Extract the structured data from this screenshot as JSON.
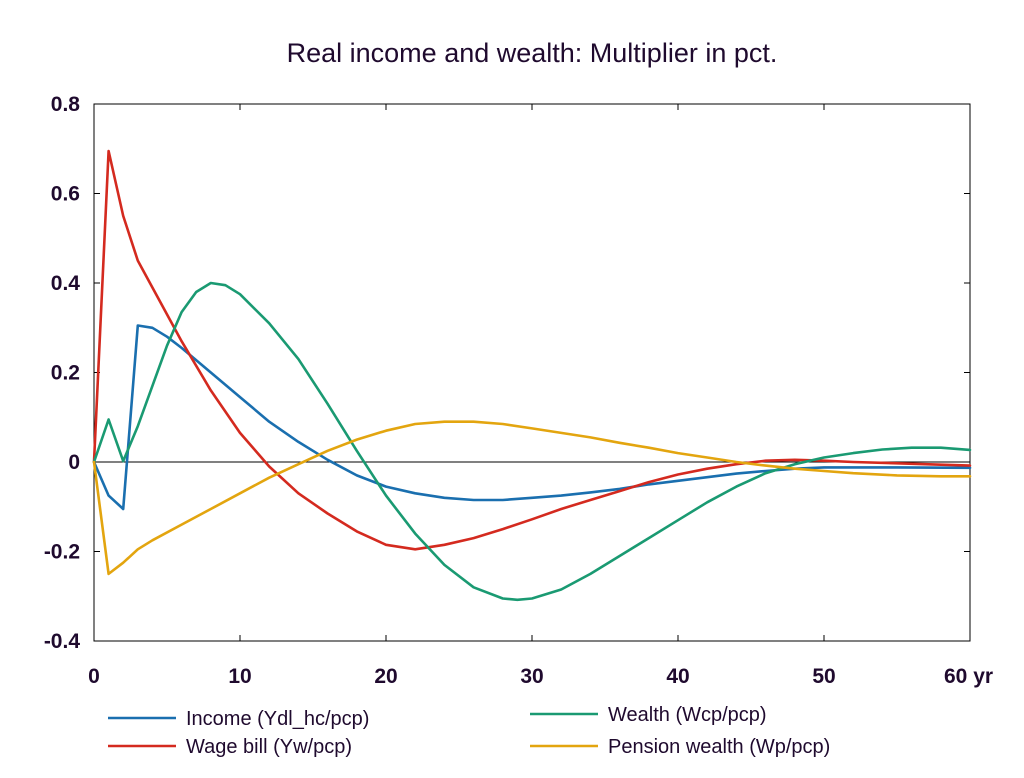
{
  "chart_data": {
    "type": "line",
    "title": "Real income and wealth: Multiplier in pct.",
    "xlabel": "",
    "ylabel": "",
    "xlim": [
      0,
      60
    ],
    "ylim": [
      -0.4,
      0.8
    ],
    "x_ticks": [
      0,
      10,
      20,
      30,
      40,
      50,
      60
    ],
    "x_tick_labels": [
      "0",
      "10",
      "20",
      "30",
      "40",
      "50",
      "60 yr"
    ],
    "y_ticks": [
      -0.4,
      -0.2,
      0,
      0.2,
      0.4,
      0.6,
      0.8
    ],
    "y_tick_labels": [
      "-0.4",
      "-0.2",
      "0",
      "0.2",
      "0.4",
      "0.6",
      "0.8"
    ],
    "zero_line": true,
    "grid": false,
    "legend_position": "bottom",
    "series": [
      {
        "name": "Income (Ydl_hc/pcp)",
        "color": "#1a6faf",
        "points": [
          [
            0,
            0
          ],
          [
            1,
            -0.075
          ],
          [
            2,
            -0.105
          ],
          [
            3,
            0.305
          ],
          [
            4,
            0.3
          ],
          [
            5,
            0.28
          ],
          [
            6,
            0.255
          ],
          [
            8,
            0.2
          ],
          [
            10,
            0.145
          ],
          [
            12,
            0.09
          ],
          [
            14,
            0.045
          ],
          [
            16,
            0.005
          ],
          [
            18,
            -0.03
          ],
          [
            20,
            -0.055
          ],
          [
            22,
            -0.07
          ],
          [
            24,
            -0.08
          ],
          [
            26,
            -0.085
          ],
          [
            28,
            -0.085
          ],
          [
            30,
            -0.08
          ],
          [
            32,
            -0.075
          ],
          [
            34,
            -0.068
          ],
          [
            36,
            -0.06
          ],
          [
            38,
            -0.05
          ],
          [
            40,
            -0.042
          ],
          [
            42,
            -0.034
          ],
          [
            44,
            -0.026
          ],
          [
            46,
            -0.02
          ],
          [
            48,
            -0.015
          ],
          [
            50,
            -0.012
          ],
          [
            55,
            -0.012
          ],
          [
            60,
            -0.013
          ]
        ]
      },
      {
        "name": "Wage bill (Yw/pcp)",
        "color": "#d42a1f",
        "points": [
          [
            0,
            0
          ],
          [
            1,
            0.695
          ],
          [
            2,
            0.55
          ],
          [
            3,
            0.45
          ],
          [
            4,
            0.39
          ],
          [
            6,
            0.27
          ],
          [
            8,
            0.16
          ],
          [
            10,
            0.065
          ],
          [
            12,
            -0.01
          ],
          [
            14,
            -0.07
          ],
          [
            16,
            -0.115
          ],
          [
            18,
            -0.155
          ],
          [
            20,
            -0.185
          ],
          [
            22,
            -0.195
          ],
          [
            24,
            -0.185
          ],
          [
            26,
            -0.17
          ],
          [
            28,
            -0.15
          ],
          [
            30,
            -0.128
          ],
          [
            32,
            -0.105
          ],
          [
            34,
            -0.085
          ],
          [
            36,
            -0.065
          ],
          [
            38,
            -0.045
          ],
          [
            40,
            -0.028
          ],
          [
            42,
            -0.015
          ],
          [
            44,
            -0.005
          ],
          [
            46,
            0.003
          ],
          [
            48,
            0.005
          ],
          [
            50,
            0.003
          ],
          [
            52,
            0
          ],
          [
            55,
            -0.003
          ],
          [
            58,
            -0.006
          ],
          [
            60,
            -0.008
          ]
        ]
      },
      {
        "name": "Wealth (Wcp/pcp)",
        "color": "#1a9a72",
        "points": [
          [
            0,
            0
          ],
          [
            1,
            0.095
          ],
          [
            2,
            0.002
          ],
          [
            3,
            0.08
          ],
          [
            4,
            0.17
          ],
          [
            5,
            0.26
          ],
          [
            6,
            0.335
          ],
          [
            7,
            0.38
          ],
          [
            8,
            0.4
          ],
          [
            9,
            0.395
          ],
          [
            10,
            0.375
          ],
          [
            12,
            0.31
          ],
          [
            14,
            0.23
          ],
          [
            16,
            0.13
          ],
          [
            18,
            0.025
          ],
          [
            20,
            -0.075
          ],
          [
            22,
            -0.16
          ],
          [
            24,
            -0.23
          ],
          [
            26,
            -0.28
          ],
          [
            28,
            -0.305
          ],
          [
            29,
            -0.308
          ],
          [
            30,
            -0.305
          ],
          [
            32,
            -0.285
          ],
          [
            34,
            -0.25
          ],
          [
            36,
            -0.21
          ],
          [
            38,
            -0.17
          ],
          [
            40,
            -0.13
          ],
          [
            42,
            -0.09
          ],
          [
            44,
            -0.055
          ],
          [
            46,
            -0.025
          ],
          [
            48,
            -0.005
          ],
          [
            50,
            0.01
          ],
          [
            52,
            0.02
          ],
          [
            54,
            0.028
          ],
          [
            56,
            0.032
          ],
          [
            58,
            0.032
          ],
          [
            60,
            0.027
          ]
        ]
      },
      {
        "name": "Pension wealth (Wp/pcp)",
        "color": "#e3a50f",
        "points": [
          [
            0,
            0
          ],
          [
            1,
            -0.25
          ],
          [
            2,
            -0.225
          ],
          [
            3,
            -0.195
          ],
          [
            4,
            -0.175
          ],
          [
            6,
            -0.14
          ],
          [
            8,
            -0.105
          ],
          [
            10,
            -0.07
          ],
          [
            12,
            -0.035
          ],
          [
            14,
            -0.005
          ],
          [
            16,
            0.025
          ],
          [
            18,
            0.05
          ],
          [
            20,
            0.07
          ],
          [
            22,
            0.085
          ],
          [
            24,
            0.09
          ],
          [
            26,
            0.09
          ],
          [
            28,
            0.085
          ],
          [
            30,
            0.075
          ],
          [
            32,
            0.065
          ],
          [
            34,
            0.055
          ],
          [
            36,
            0.043
          ],
          [
            38,
            0.032
          ],
          [
            40,
            0.02
          ],
          [
            42,
            0.01
          ],
          [
            44,
            0
          ],
          [
            46,
            -0.008
          ],
          [
            48,
            -0.015
          ],
          [
            50,
            -0.02
          ],
          [
            52,
            -0.025
          ],
          [
            55,
            -0.03
          ],
          [
            58,
            -0.032
          ],
          [
            60,
            -0.032
          ]
        ]
      }
    ]
  }
}
